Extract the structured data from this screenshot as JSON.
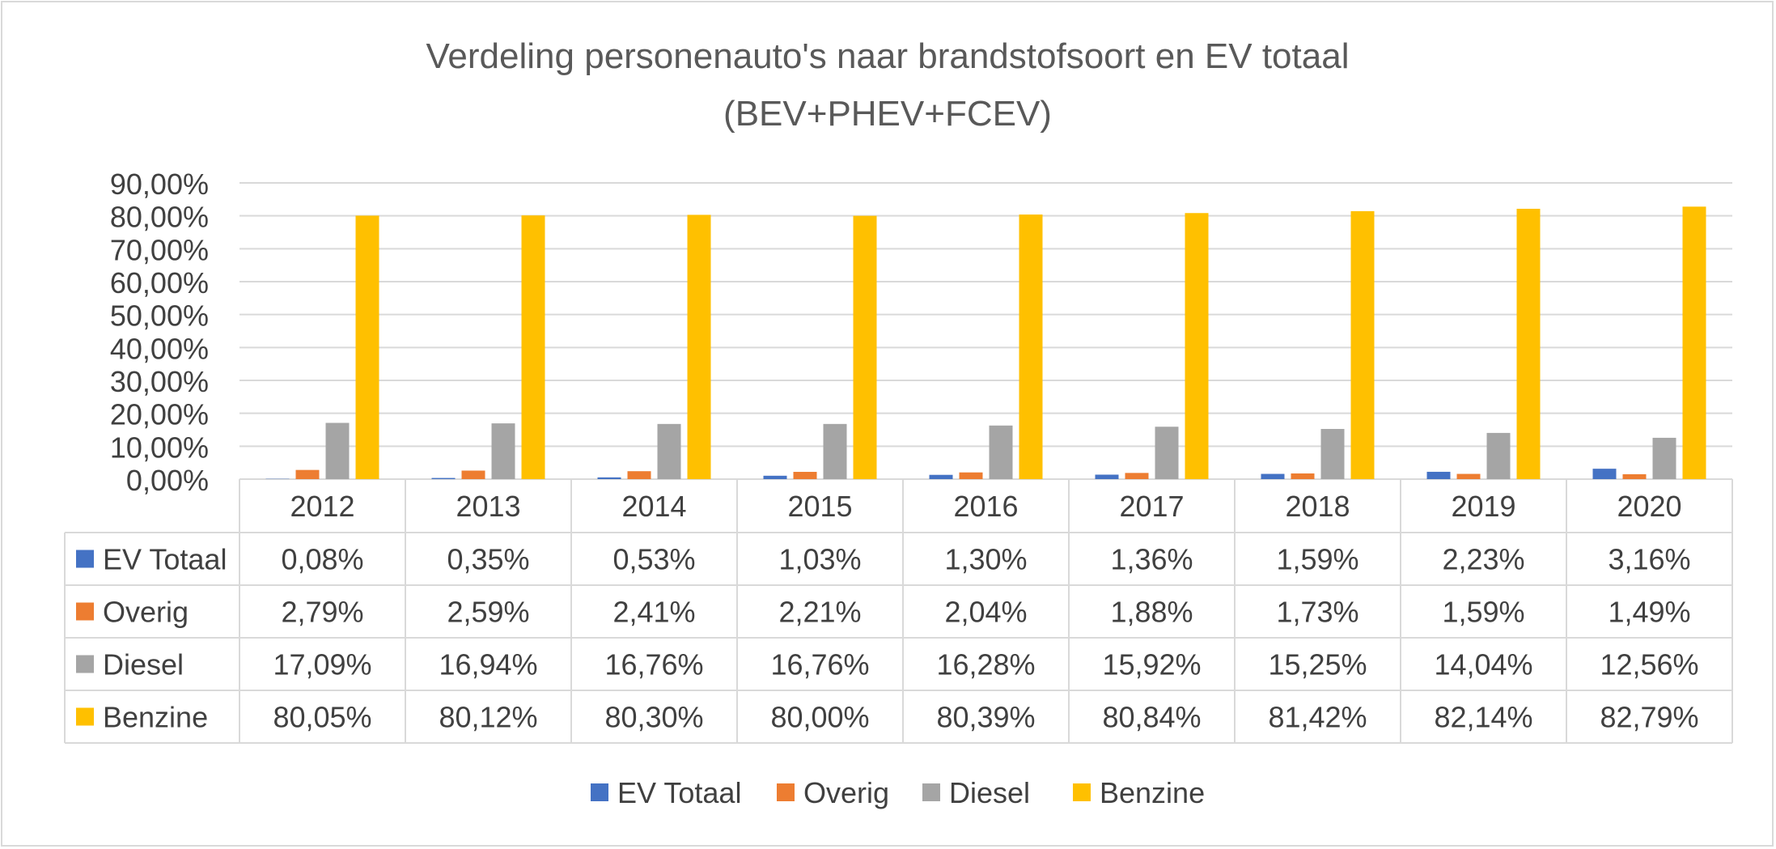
{
  "chart_data": {
    "type": "bar",
    "title": "Verdeling personenauto's naar brandstofsoort en EV totaal",
    "subtitle": "(BEV+PHEV+FCEV)",
    "categories": [
      "2012",
      "2013",
      "2014",
      "2015",
      "2016",
      "2017",
      "2018",
      "2019",
      "2020"
    ],
    "series": [
      {
        "name": "EV Totaal",
        "color": "#4472c4",
        "values": [
          0.08,
          0.35,
          0.53,
          1.03,
          1.3,
          1.36,
          1.59,
          2.23,
          3.16
        ],
        "labels": [
          "0,08%",
          "0,35%",
          "0,53%",
          "1,03%",
          "1,30%",
          "1,36%",
          "1,59%",
          "2,23%",
          "3,16%"
        ]
      },
      {
        "name": "Overig",
        "color": "#ed7d31",
        "values": [
          2.79,
          2.59,
          2.41,
          2.21,
          2.04,
          1.88,
          1.73,
          1.59,
          1.49
        ],
        "labels": [
          "2,79%",
          "2,59%",
          "2,41%",
          "2,21%",
          "2,04%",
          "1,88%",
          "1,73%",
          "1,59%",
          "1,49%"
        ]
      },
      {
        "name": "Diesel",
        "color": "#a5a5a5",
        "values": [
          17.09,
          16.94,
          16.76,
          16.76,
          16.28,
          15.92,
          15.25,
          14.04,
          12.56
        ],
        "labels": [
          "17,09%",
          "16,94%",
          "16,76%",
          "16,76%",
          "16,28%",
          "15,92%",
          "15,25%",
          "14,04%",
          "12,56%"
        ]
      },
      {
        "name": "Benzine",
        "color": "#ffc000",
        "values": [
          80.05,
          80.12,
          80.3,
          80.0,
          80.39,
          80.84,
          81.42,
          82.14,
          82.79
        ],
        "labels": [
          "80,05%",
          "80,12%",
          "80,30%",
          "80,00%",
          "80,39%",
          "80,84%",
          "81,42%",
          "82,14%",
          "82,79%"
        ]
      }
    ],
    "ylim": [
      0,
      90
    ],
    "yticks": [
      0,
      10,
      20,
      30,
      40,
      50,
      60,
      70,
      80,
      90
    ],
    "ytick_labels": [
      "0,00%",
      "10,00%",
      "20,00%",
      "30,00%",
      "40,00%",
      "50,00%",
      "60,00%",
      "70,00%",
      "80,00%",
      "90,00%"
    ],
    "grid": true,
    "legend_position": "bottom",
    "data_table": true
  }
}
